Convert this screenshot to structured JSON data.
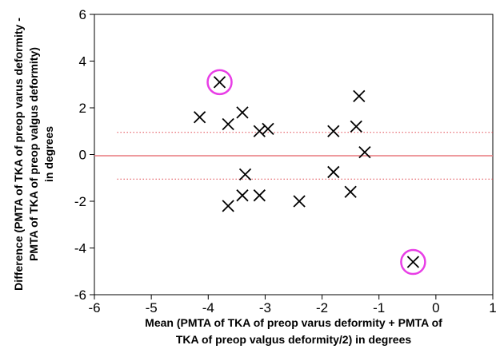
{
  "chart_data": {
    "type": "scatter",
    "title": "",
    "xlabel_lines": [
      "Mean (PMTA of TKA of preop varus deformity + PMTA of",
      "TKA of preop valgus deformity/2) in degrees"
    ],
    "ylabel_lines": [
      "Difference (PMTA of TKA of preop varus deformity -",
      "PMTA of TKA of preop valgus deformity)",
      "in degrees"
    ],
    "xlim": [
      -6,
      1
    ],
    "ylim": [
      -6,
      6
    ],
    "x_ticks": [
      -6,
      -5,
      -4,
      -3,
      -2,
      -1,
      0,
      1
    ],
    "y_ticks": [
      -6,
      -4,
      -2,
      0,
      2,
      4,
      6
    ],
    "grid": false,
    "marker": "x",
    "points": [
      {
        "x": -3.8,
        "y": 3.1,
        "highlighted": true
      },
      {
        "x": -4.15,
        "y": 1.6
      },
      {
        "x": -3.65,
        "y": 1.3
      },
      {
        "x": -3.4,
        "y": 1.8
      },
      {
        "x": -3.1,
        "y": 1.0
      },
      {
        "x": -2.95,
        "y": 1.1
      },
      {
        "x": -3.35,
        "y": -0.85
      },
      {
        "x": -3.4,
        "y": -1.75
      },
      {
        "x": -3.65,
        "y": -2.2
      },
      {
        "x": -3.1,
        "y": -1.75
      },
      {
        "x": -2.4,
        "y": -2.0
      },
      {
        "x": -1.8,
        "y": 1.0
      },
      {
        "x": -1.8,
        "y": -0.75
      },
      {
        "x": -1.5,
        "y": -1.6
      },
      {
        "x": -1.4,
        "y": 1.2
      },
      {
        "x": -1.35,
        "y": 2.5
      },
      {
        "x": -1.25,
        "y": 0.1
      },
      {
        "x": -0.4,
        "y": -4.6,
        "highlighted": true
      }
    ],
    "mean_line": {
      "y": -0.05,
      "color": "#e8787e"
    },
    "limit_lines": [
      {
        "y": 0.95,
        "color": "#e0474e",
        "style": "dotted"
      },
      {
        "y": -1.05,
        "color": "#e0474e",
        "style": "dotted"
      }
    ],
    "reference_line_x_range": [
      -5.6,
      1
    ],
    "highlight_color": "#e83ee6"
  }
}
